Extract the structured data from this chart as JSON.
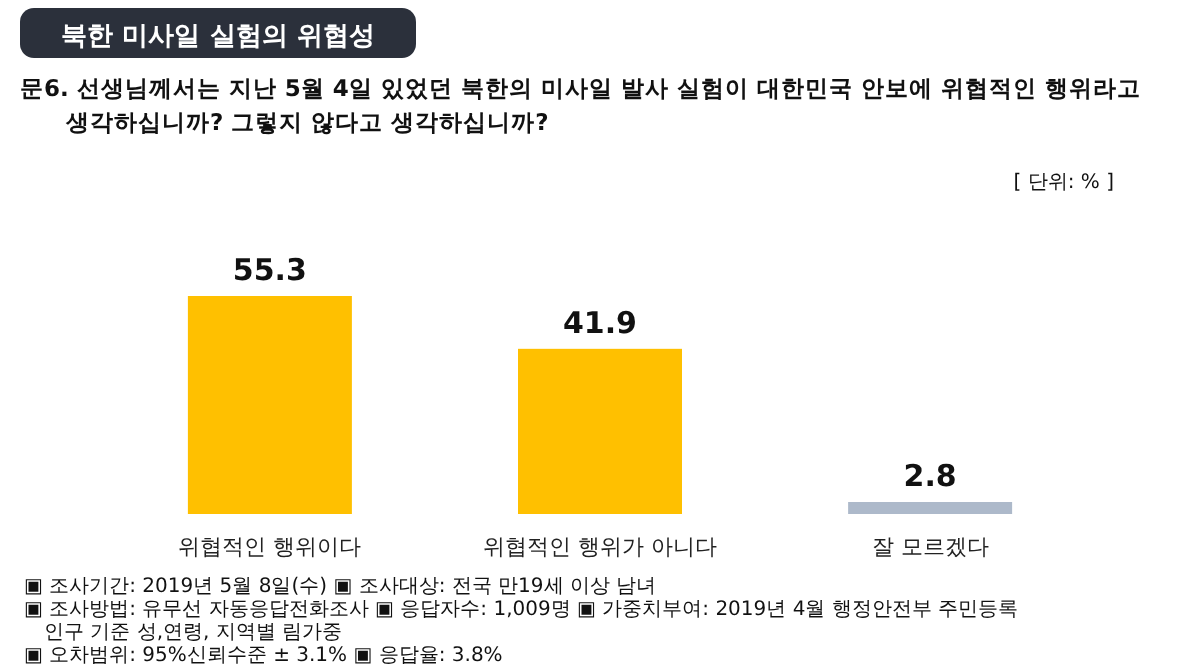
{
  "chart_data": {
    "type": "bar",
    "title": "북한 미사일 실험의 위협성",
    "subtitle": "문6. 선생님께서는 지난 5월 4일 있었던 북한의 미사일 발사 실험이 대한민국 안보에 위협적인 행위라고\n생각하십니까? 그렇지 않다고 생각하십니까?",
    "categories": [
      "위협적인 행위이다",
      "위협적인 행위가 아니다",
      "잘 모르겠다"
    ],
    "values": [
      55.3,
      41.9,
      2.8
    ],
    "colors": [
      "#ffc000",
      "#ffc000",
      "#adb9ca"
    ],
    "data_labels": true,
    "annotations": [
      "[ 단위: % ]",
      "▣ 조사기간: 2019년 5월 8일(수) ▣ 조사대상: 전국 만19세 이상 남녀",
      "▣ 조사방법: 유무선 자동응답전화조사 ▣ 응답자수: 1,009명 ▣ 가중치부여: 2019년 4월 행정안전부 주민등록 인구 기준 성,연령, 지역별 림가중",
      "▣ 오차범위: 95%신뢰수준 ± 3.1% ▣ 응답율: 3.8%"
    ]
  }
}
